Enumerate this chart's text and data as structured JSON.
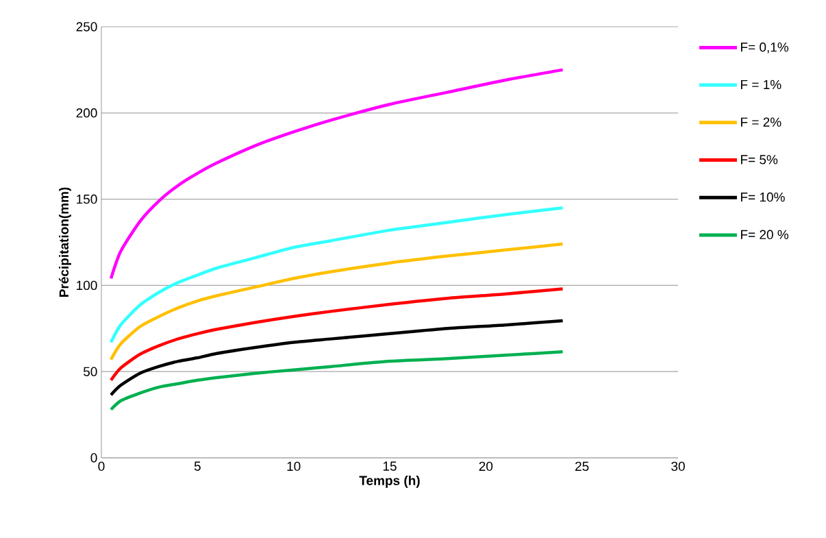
{
  "chart_data": {
    "type": "line",
    "xlabel": "Temps (h)",
    "ylabel": "Précipitation(mm)",
    "x": [
      0.5,
      1,
      2,
      3,
      4,
      5,
      6,
      8,
      10,
      12,
      15,
      18,
      21,
      24
    ],
    "series": [
      {
        "name": "F= 0,1%",
        "color": "#ff00ff",
        "values": [
          104,
          119.6,
          137,
          149,
          158,
          165,
          171,
          181,
          189,
          196,
          205,
          212,
          219,
          225
        ]
      },
      {
        "name": "F = 1%",
        "color": "#33ffff",
        "values": [
          67,
          77,
          88.5,
          96,
          101.7,
          106,
          110,
          116,
          122,
          126,
          132,
          136.5,
          141,
          145
        ]
      },
      {
        "name": "F = 2%",
        "color": "#ffc000",
        "values": [
          57,
          66,
          76,
          82,
          87,
          91,
          94,
          99,
          104,
          108,
          113,
          117,
          120.5,
          124
        ]
      },
      {
        "name": "F= 5%",
        "color": "#ff0000",
        "values": [
          45,
          52,
          60,
          65,
          69,
          72,
          74.5,
          78.5,
          82,
          85,
          89,
          92.5,
          95,
          98
        ]
      },
      {
        "name": "F= 10%",
        "color": "#000000",
        "values": [
          36.5,
          42,
          49,
          53,
          56,
          58,
          60.5,
          64,
          67,
          69,
          72,
          75,
          77,
          79.5
        ]
      },
      {
        "name": "F= 20 %",
        "color": "#00b050",
        "values": [
          28,
          33,
          37.5,
          41,
          43,
          45,
          46.5,
          49,
          51,
          53,
          56,
          57.5,
          59.5,
          61.5
        ]
      }
    ],
    "xlim": [
      0,
      30
    ],
    "ylim": [
      0,
      250
    ],
    "xticks": [
      0,
      5,
      10,
      15,
      20,
      25,
      30
    ],
    "yticks": [
      0,
      50,
      100,
      150,
      200,
      250
    ],
    "grid": "y",
    "legend": "right",
    "line_style": "solid"
  }
}
